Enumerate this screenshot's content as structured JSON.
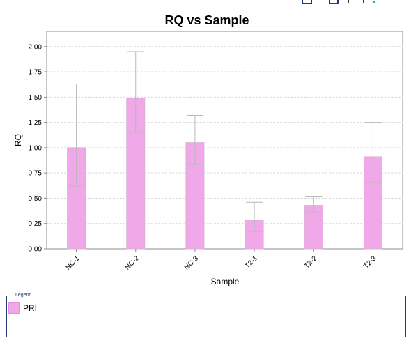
{
  "chart_data": {
    "type": "bar",
    "title": "RQ vs Sample",
    "xlabel": "Sample",
    "ylabel": "RQ",
    "categories": [
      "NC-1",
      "NC-2",
      "NC-3",
      "T2-1",
      "T2-2",
      "T2-3"
    ],
    "series": [
      {
        "name": "PRI",
        "values": [
          1.0,
          1.49,
          1.05,
          0.28,
          0.43,
          0.91
        ],
        "error_low": [
          0.62,
          1.15,
          0.83,
          0.17,
          0.36,
          0.66
        ],
        "error_high": [
          1.63,
          1.95,
          1.32,
          0.46,
          0.52,
          1.25
        ]
      }
    ],
    "ylim": [
      0,
      2.15
    ],
    "yticks": [
      "0.00",
      "0.25",
      "0.50",
      "0.75",
      "1.00",
      "1.25",
      "1.50",
      "1.75",
      "2.00"
    ],
    "grid": true,
    "legend_position": "bottom"
  },
  "legend": {
    "title": "Legend",
    "items": [
      {
        "label": "PRI"
      }
    ]
  },
  "colors": {
    "bar_fill": "#f0a8e8",
    "bar_stroke": "#d9b3d6",
    "error_bar": "#b8b8b8",
    "grid": "#d9d9d9",
    "axis": "#8c8c8c",
    "legend_border": "#1f3b73"
  },
  "toolbar": {
    "icons": [
      "save-icon",
      "disk-icon",
      "box-icon",
      "dots-icon"
    ]
  }
}
